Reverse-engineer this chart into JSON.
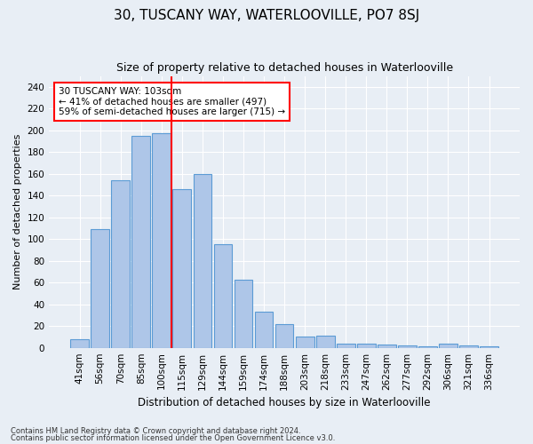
{
  "title": "30, TUSCANY WAY, WATERLOOVILLE, PO7 8SJ",
  "subtitle": "Size of property relative to detached houses in Waterlooville",
  "xlabel": "Distribution of detached houses by size in Waterlooville",
  "ylabel": "Number of detached properties",
  "categories": [
    "41sqm",
    "56sqm",
    "70sqm",
    "85sqm",
    "100sqm",
    "115sqm",
    "129sqm",
    "144sqm",
    "159sqm",
    "174sqm",
    "188sqm",
    "203sqm",
    "218sqm",
    "233sqm",
    "247sqm",
    "262sqm",
    "277sqm",
    "292sqm",
    "306sqm",
    "321sqm",
    "336sqm"
  ],
  "values": [
    8,
    109,
    154,
    195,
    197,
    146,
    160,
    95,
    63,
    33,
    22,
    10,
    11,
    4,
    4,
    3,
    2,
    1,
    4,
    2,
    1
  ],
  "bar_color": "#aec6e8",
  "bar_edge_color": "#5b9bd5",
  "annotation_line1": "30 TUSCANY WAY: 103sqm",
  "annotation_line2": "← 41% of detached houses are smaller (497)",
  "annotation_line3": "59% of semi-detached houses are larger (715) →",
  "annotation_box_color": "white",
  "annotation_box_edge_color": "red",
  "ylim": [
    0,
    250
  ],
  "yticks": [
    0,
    20,
    40,
    60,
    80,
    100,
    120,
    140,
    160,
    180,
    200,
    220,
    240
  ],
  "footnote1": "Contains HM Land Registry data © Crown copyright and database right 2024.",
  "footnote2": "Contains public sector information licensed under the Open Government Licence v3.0.",
  "bg_color": "#e8eef5",
  "plot_bg_color": "#e8eef5",
  "redline_x": 4.5,
  "title_fontsize": 11,
  "subtitle_fontsize": 9,
  "ylabel_fontsize": 8,
  "xlabel_fontsize": 8.5,
  "tick_fontsize": 7.5,
  "annot_fontsize": 7.5
}
